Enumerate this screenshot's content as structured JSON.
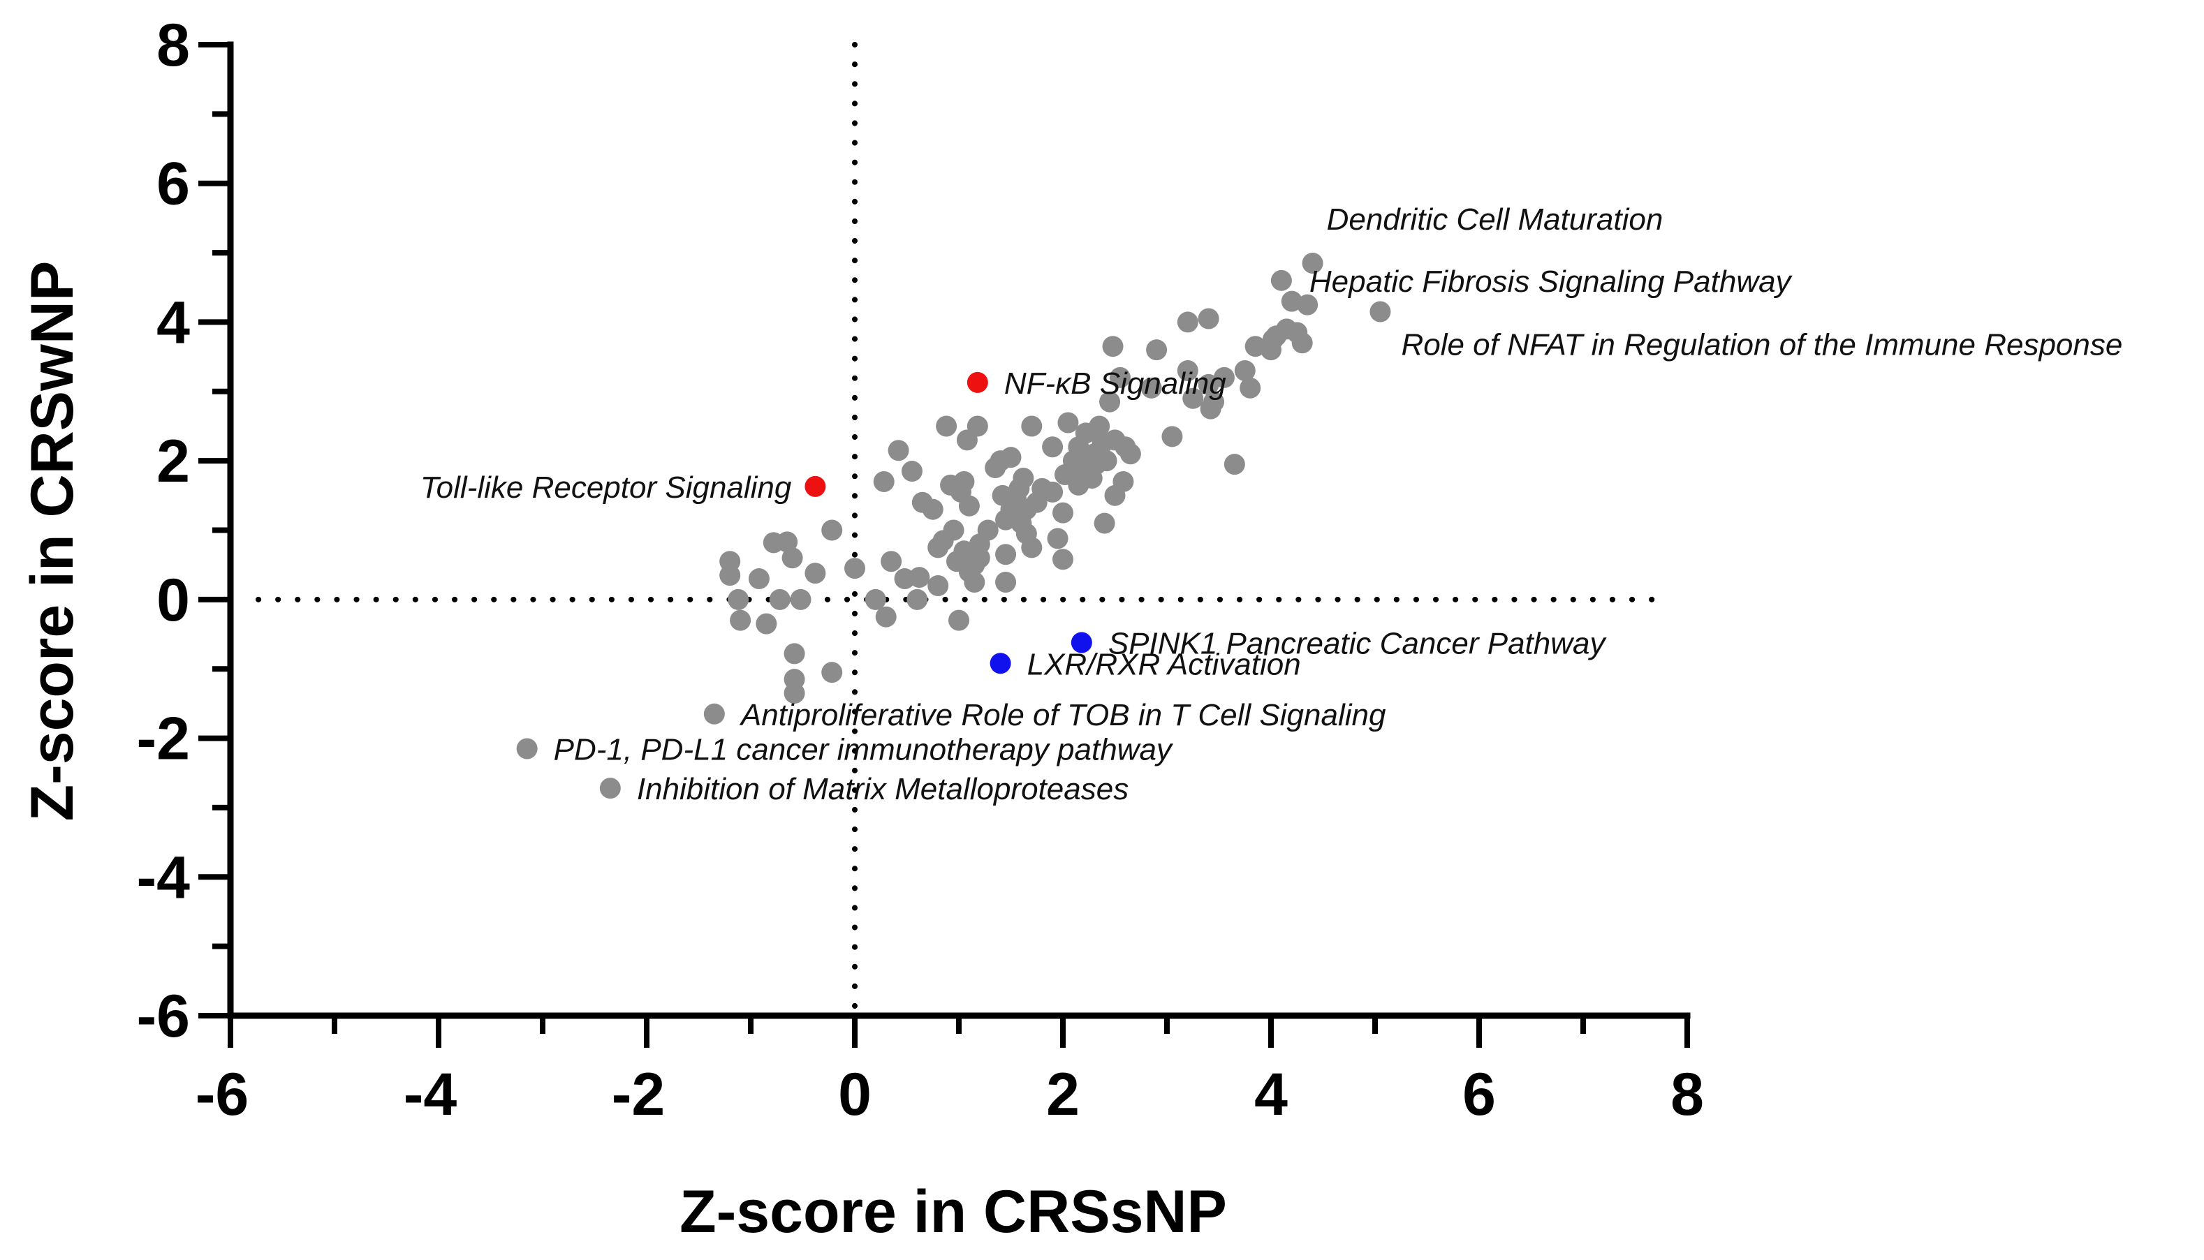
{
  "chart_data": {
    "type": "scatter",
    "title": "",
    "xlabel": "Z-score in CRSsNP",
    "ylabel": "Z-score in CRSwNP",
    "xlim": [
      -6,
      8
    ],
    "ylim": [
      -6,
      8
    ],
    "x_ticks": [
      -6,
      -4,
      -2,
      0,
      2,
      4,
      6,
      8
    ],
    "y_ticks": [
      -6,
      -4,
      -2,
      0,
      2,
      4,
      6,
      8
    ],
    "x_tick_labels": [
      "-6",
      "-4",
      "-2",
      "0",
      "2",
      "4",
      "6",
      "8"
    ],
    "y_tick_labels": [
      "-6",
      "-4",
      "-2",
      "0",
      "2",
      "4",
      "6",
      "8"
    ],
    "reference_lines": {
      "x": 0,
      "y": 0,
      "style": "dotted"
    },
    "colors": {
      "default": "#8c8c8c",
      "red": "#ee1111",
      "blue": "#1111ee",
      "axis": "#000000"
    },
    "highlighted_points": [
      {
        "x": 4.4,
        "y": 4.85,
        "color": "default",
        "label": "Dendritic Cell Maturation",
        "anchor": "above"
      },
      {
        "x": 4.1,
        "y": 4.6,
        "color": "default",
        "label": "Hepatic Fibrosis Signaling Pathway",
        "anchor": "right-up"
      },
      {
        "x": 5.05,
        "y": 4.15,
        "color": "default",
        "label": "Role of NFAT in Regulation of the Immune Response",
        "anchor": "right-down"
      },
      {
        "x": 1.18,
        "y": 3.13,
        "color": "red",
        "label": "NF-κB Signaling",
        "anchor": "right"
      },
      {
        "x": -0.38,
        "y": 1.63,
        "color": "red",
        "label": "Toll-like Receptor Signaling",
        "anchor": "left"
      },
      {
        "x": 2.18,
        "y": -0.62,
        "color": "blue",
        "label": "SPINK1 Pancreatic Cancer Pathway",
        "anchor": "right"
      },
      {
        "x": 1.4,
        "y": -0.92,
        "color": "blue",
        "label": "LXR/RXR Activation",
        "anchor": "right"
      },
      {
        "x": -1.35,
        "y": -1.65,
        "color": "default",
        "label": "Antiproliferative Role of TOB in T Cell Signaling",
        "anchor": "right"
      },
      {
        "x": -3.15,
        "y": -2.15,
        "color": "default",
        "label": "PD-1, PD-L1 cancer immunotherapy pathway",
        "anchor": "right"
      },
      {
        "x": -2.35,
        "y": -2.72,
        "color": "default",
        "label": "Inhibition of Matrix Metalloproteases",
        "anchor": "right"
      }
    ],
    "points": [
      [
        -1.2,
        0.55
      ],
      [
        -1.2,
        0.35
      ],
      [
        -1.12,
        0.0
      ],
      [
        -1.1,
        -0.3
      ],
      [
        -0.92,
        0.3
      ],
      [
        -0.85,
        -0.35
      ],
      [
        -0.78,
        0.82
      ],
      [
        -0.72,
        0.0
      ],
      [
        -0.65,
        0.83
      ],
      [
        -0.6,
        0.6
      ],
      [
        -0.58,
        -0.78
      ],
      [
        -0.58,
        -1.15
      ],
      [
        -0.58,
        -1.35
      ],
      [
        -0.52,
        0.0
      ],
      [
        -0.38,
        0.38
      ],
      [
        -0.22,
        1.0
      ],
      [
        -0.22,
        -1.05
      ],
      [
        0.0,
        0.45
      ],
      [
        0.2,
        0.0
      ],
      [
        0.28,
        1.7
      ],
      [
        0.3,
        -0.25
      ],
      [
        0.35,
        0.55
      ],
      [
        0.42,
        2.15
      ],
      [
        0.48,
        0.3
      ],
      [
        0.55,
        1.85
      ],
      [
        0.6,
        0.0
      ],
      [
        0.62,
        0.32
      ],
      [
        0.65,
        1.4
      ],
      [
        0.75,
        1.3
      ],
      [
        0.8,
        0.75
      ],
      [
        0.8,
        0.2
      ],
      [
        0.85,
        0.85
      ],
      [
        0.88,
        2.5
      ],
      [
        0.92,
        1.65
      ],
      [
        0.95,
        1.0
      ],
      [
        0.98,
        0.55
      ],
      [
        1.0,
        -0.3
      ],
      [
        1.02,
        1.55
      ],
      [
        1.05,
        1.7
      ],
      [
        1.05,
        0.7
      ],
      [
        1.08,
        2.3
      ],
      [
        1.1,
        1.35
      ],
      [
        1.1,
        0.4
      ],
      [
        1.15,
        0.5
      ],
      [
        1.15,
        0.25
      ],
      [
        1.18,
        2.5
      ],
      [
        1.2,
        0.8
      ],
      [
        1.2,
        0.6
      ],
      [
        1.28,
        1.0
      ],
      [
        1.35,
        1.9
      ],
      [
        1.4,
        2.0
      ],
      [
        1.42,
        1.5
      ],
      [
        1.45,
        1.15
      ],
      [
        1.45,
        0.65
      ],
      [
        1.45,
        0.25
      ],
      [
        1.5,
        1.3
      ],
      [
        1.5,
        2.05
      ],
      [
        1.55,
        1.45
      ],
      [
        1.58,
        1.6
      ],
      [
        1.6,
        1.1
      ],
      [
        1.62,
        1.75
      ],
      [
        1.65,
        1.3
      ],
      [
        1.65,
        0.95
      ],
      [
        1.7,
        0.75
      ],
      [
        1.7,
        2.5
      ],
      [
        1.75,
        1.4
      ],
      [
        1.8,
        1.6
      ],
      [
        1.9,
        1.55
      ],
      [
        1.9,
        2.2
      ],
      [
        1.95,
        0.88
      ],
      [
        2.0,
        0.58
      ],
      [
        2.0,
        1.25
      ],
      [
        2.02,
        1.8
      ],
      [
        2.05,
        2.55
      ],
      [
        2.1,
        2.0
      ],
      [
        2.15,
        1.65
      ],
      [
        2.15,
        2.2
      ],
      [
        2.2,
        1.85
      ],
      [
        2.22,
        2.4
      ],
      [
        2.25,
        2.05
      ],
      [
        2.28,
        1.75
      ],
      [
        2.3,
        2.1
      ],
      [
        2.32,
        1.95
      ],
      [
        2.35,
        2.5
      ],
      [
        2.38,
        2.25
      ],
      [
        2.4,
        1.1
      ],
      [
        2.42,
        2.0
      ],
      [
        2.45,
        2.85
      ],
      [
        2.48,
        3.65
      ],
      [
        2.5,
        2.3
      ],
      [
        2.5,
        1.5
      ],
      [
        2.55,
        3.2
      ],
      [
        2.58,
        1.7
      ],
      [
        2.6,
        2.2
      ],
      [
        2.65,
        2.1
      ],
      [
        2.85,
        3.05
      ],
      [
        2.9,
        3.6
      ],
      [
        3.05,
        2.35
      ],
      [
        3.2,
        4.0
      ],
      [
        3.2,
        3.3
      ],
      [
        3.25,
        2.9
      ],
      [
        3.4,
        4.05
      ],
      [
        3.4,
        3.1
      ],
      [
        3.42,
        2.75
      ],
      [
        3.45,
        2.85
      ],
      [
        3.55,
        3.2
      ],
      [
        3.65,
        1.95
      ],
      [
        3.75,
        3.3
      ],
      [
        3.8,
        3.05
      ],
      [
        3.85,
        3.65
      ],
      [
        4.0,
        3.6
      ],
      [
        4.02,
        3.75
      ],
      [
        4.05,
        3.8
      ],
      [
        4.15,
        3.9
      ],
      [
        4.2,
        4.3
      ],
      [
        4.25,
        3.85
      ],
      [
        4.3,
        3.7
      ],
      [
        4.35,
        4.25
      ]
    ]
  }
}
